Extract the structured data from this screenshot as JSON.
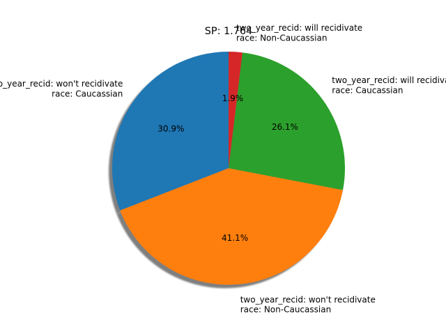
{
  "chart_data": {
    "type": "pie",
    "title": "SP: 1.764",
    "shadow": true,
    "start_angle_deg": 90,
    "direction": "counterclockwise",
    "slices": [
      {
        "label_lines": [
          "two_year_recid: won't recidivate",
          "race: Caucassian"
        ],
        "value": 30.9,
        "pct_label": "30.9%",
        "color": "#1f77b4"
      },
      {
        "label_lines": [
          "two_year_recid: won't recidivate",
          "race: Non-Caucassian"
        ],
        "value": 41.1,
        "pct_label": "41.1%",
        "color": "#ff7f0e"
      },
      {
        "label_lines": [
          "two_year_recid: will recidivate",
          "race: Caucassian"
        ],
        "value": 26.1,
        "pct_label": "26.1%",
        "color": "#2ca02c"
      },
      {
        "label_lines": [
          "two_year_recid: will recidivate",
          "race: Non-Caucassian"
        ],
        "value": 1.9,
        "pct_label": "1.9%",
        "color": "#d62728"
      }
    ]
  }
}
